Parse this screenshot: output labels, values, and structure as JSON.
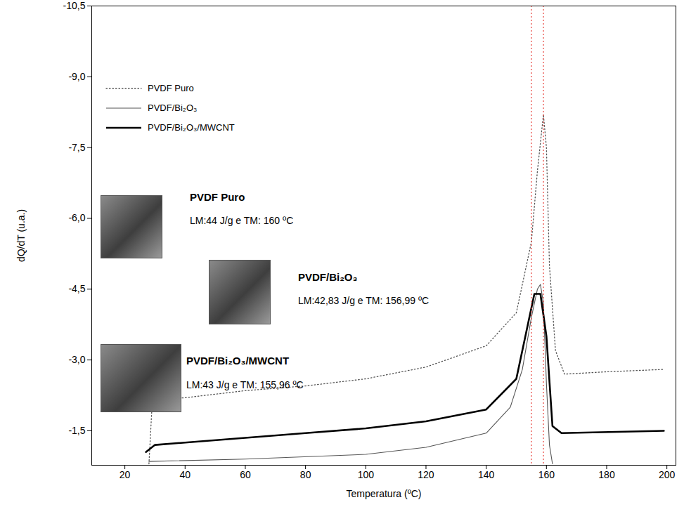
{
  "chart_data": {
    "type": "line",
    "x_label": "Temperatura (ºC)",
    "y_label": "dQ/dT (u.a.)",
    "xlim": [
      9,
      203
    ],
    "ylim": [
      -0.77,
      -10.5
    ],
    "xticks": [
      20,
      40,
      60,
      80,
      100,
      120,
      140,
      160,
      180,
      200
    ],
    "yticks": [
      {
        "value": -1.5,
        "label": "-1,5"
      },
      {
        "value": -3.0,
        "label": "-3,0"
      },
      {
        "value": -4.5,
        "label": "-4,5"
      },
      {
        "value": -6.0,
        "label": "-6,0"
      },
      {
        "value": -7.5,
        "label": "-7,5"
      },
      {
        "value": -9.0,
        "label": "-9,0"
      },
      {
        "value": -10.5,
        "label": "-10,5"
      }
    ],
    "legend": "upper left",
    "series": [
      {
        "name": "PVDF Puro",
        "color": "#555555",
        "line_style": "dotted",
        "x": [
          28,
          29,
          30,
          40,
          60,
          80,
          100,
          120,
          140,
          150,
          155,
          157,
          159,
          160,
          161,
          163,
          166,
          180,
          199
        ],
        "values": [
          -0.8,
          -2.0,
          -2.15,
          -2.2,
          -2.35,
          -2.45,
          -2.6,
          -2.85,
          -3.3,
          -4.0,
          -5.5,
          -7.0,
          -8.2,
          -7.5,
          -5.0,
          -3.2,
          -2.7,
          -2.75,
          -2.8
        ]
      },
      {
        "name": "PVDF/Bi₂O₃",
        "color": "#555555",
        "line_style": "thin",
        "x": [
          28,
          60,
          100,
          120,
          140,
          148,
          152,
          155,
          157,
          158,
          159,
          160,
          161,
          162
        ],
        "values": [
          -0.85,
          -0.9,
          -1.0,
          -1.15,
          -1.45,
          -2.0,
          -2.8,
          -3.9,
          -4.5,
          -4.6,
          -4.2,
          -2.5,
          -1.2,
          -0.8
        ]
      },
      {
        "name": "PVDF/Bi₂O₃/MWCNT",
        "color": "#000000",
        "line_style": "thick",
        "x": [
          27,
          30,
          40,
          60,
          80,
          100,
          120,
          140,
          150,
          154,
          156,
          158,
          160,
          162,
          165,
          199
        ],
        "values": [
          -1.05,
          -1.2,
          -1.25,
          -1.35,
          -1.45,
          -1.55,
          -1.7,
          -1.95,
          -2.6,
          -3.8,
          -4.4,
          -4.4,
          -3.5,
          -1.6,
          -1.45,
          -1.5
        ]
      }
    ],
    "vlines": [
      155,
      159
    ],
    "vline_color": "#e8403a",
    "annotations": [
      {
        "title": "PVDF Puro",
        "text": "LM:44 J/g e TM: 160 ºC"
      },
      {
        "title": "PVDF/Bi₂O₃",
        "text": "LM:42,83 J/g e TM: 156,99 ºC"
      },
      {
        "title": "PVDF/Bi₂O₃/MWCNT",
        "text": "LM:43 J/g e TM: 155,96 ºC"
      }
    ]
  }
}
